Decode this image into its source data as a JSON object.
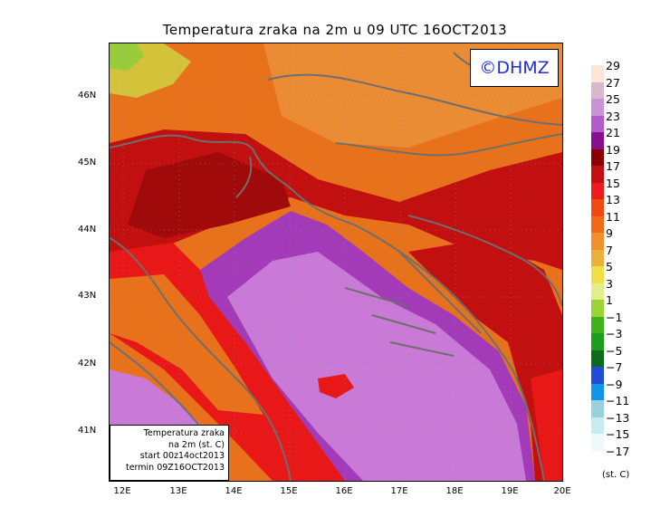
{
  "title": "Temperatura zraka na 2m u 09 UTC 16OCT2013",
  "copyright": "©DHMZ",
  "info_box": {
    "line1": "Temperatura zraka",
    "line2": "na 2m (st. C)",
    "line3": "start 00z14oct2013",
    "line4": "termin 09Z16OCT2013"
  },
  "lat_labels": [
    "46N",
    "45N",
    "44N",
    "43N",
    "42N",
    "41N"
  ],
  "lon_labels": [
    "12E",
    "13E",
    "14E",
    "15E",
    "16E",
    "17E",
    "18E",
    "19E",
    "20E"
  ],
  "legend": {
    "unit": "(st. C)",
    "labels": [
      "29",
      "27",
      "25",
      "23",
      "21",
      "19",
      "17",
      "15",
      "13",
      "11",
      "9",
      "7",
      "5",
      "3",
      "1",
      "−1",
      "−3",
      "−5",
      "−7",
      "−9",
      "−11",
      "−13",
      "−15",
      "−17"
    ],
    "colors": [
      "#f9e6d3",
      "#d8b7cf",
      "#c994d6",
      "#b35cc9",
      "#8a0f8f",
      "#8b0000",
      "#c21010",
      "#ee1c1c",
      "#f04a12",
      "#f26a18",
      "#f0902a",
      "#e9b13b",
      "#efe04a",
      "#e0ef8a",
      "#9ad335",
      "#3fb21b",
      "#1b9e1b",
      "#0b6b1b",
      "#234dd6",
      "#0f96e6",
      "#9ad0e0",
      "#c7ebef",
      "#eef9fb"
    ]
  },
  "map_colors": {
    "sea": "#c97ad7",
    "sea_dark": "#a33ab8",
    "coast_red": "#e81818",
    "inland_dark": "#a10a0a",
    "inland_orange": "#e8721c",
    "north_orange": "#e98c33",
    "alps_yellow": "#d4c23a",
    "alps_green": "#98cc3a",
    "border": "#6e6e6e"
  }
}
